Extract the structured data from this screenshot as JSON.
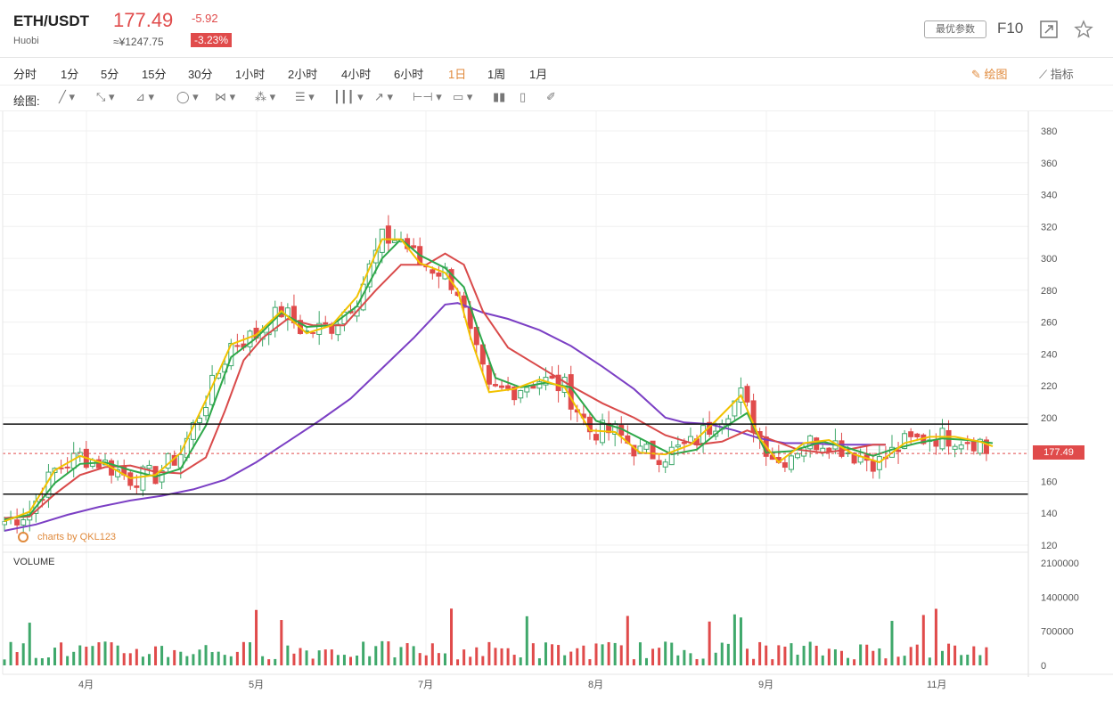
{
  "header": {
    "symbol": "ETH/USDT",
    "exchange": "Huobi",
    "price": "177.49",
    "cny_price": "≈¥1247.75",
    "change": "-5.92",
    "change_pct": "-3.23%",
    "params_label": "最优参数",
    "f10_label": "F10",
    "expand_icon": "expand-icon",
    "star_icon": "star-icon"
  },
  "timeframes": [
    "分时",
    "1分",
    "5分",
    "15分",
    "30分",
    "1小时",
    "2小时",
    "4小时",
    "6小时",
    "1日",
    "1周",
    "1月"
  ],
  "active_timeframe": "1日",
  "toolbar": {
    "draw_label": "绘图",
    "indicator_label": "指标",
    "draw_tools_label": "绘图:"
  },
  "draw_tools": [
    "line-tool-icon",
    "ray-tool-icon",
    "channel-tool-icon",
    "circle-tool-icon",
    "zigzag-tool-icon",
    "pattern-tool-icon",
    "fib-tool-icon",
    "parallel-tool-icon",
    "arrow-tool-icon",
    "measure-tool-icon",
    "comment-tool-icon",
    "bars-tool-icon",
    "delete-tool-icon",
    "eraser-tool-icon"
  ],
  "colors": {
    "up": "#3fa86b",
    "down": "#e04b4b",
    "ma5": "#f2c200",
    "ma10": "#2ea84a",
    "ma20": "#d94a4a",
    "ma60": "#7b3fc4",
    "accent": "#e08a3c"
  },
  "chart_data": {
    "type": "candlestick",
    "ylim": [
      120,
      380
    ],
    "y_ticks": [
      120,
      140,
      160,
      180,
      200,
      220,
      240,
      260,
      280,
      300,
      320,
      340,
      360,
      380
    ],
    "x_ticks": [
      "4月",
      "5月",
      "7月",
      "8月",
      "9月",
      "11月"
    ],
    "last_price": "177.49",
    "watermark": "charts by QKL123",
    "horizontal_lines": [
      196,
      152
    ],
    "volume": {
      "label": "VOLUME",
      "ylim": [
        0,
        2100000
      ],
      "ticks": [
        "2100000",
        "1400000",
        "700000",
        "0"
      ]
    },
    "series": [
      {
        "name": "MA60",
        "points": [
          [
            0,
            129
          ],
          [
            5,
            133
          ],
          [
            10,
            139
          ],
          [
            15,
            144
          ],
          [
            20,
            148
          ],
          [
            25,
            151
          ],
          [
            30,
            155
          ],
          [
            35,
            161
          ],
          [
            40,
            172
          ],
          [
            45,
            185
          ],
          [
            50,
            198
          ],
          [
            55,
            212
          ],
          [
            60,
            231
          ],
          [
            65,
            250
          ],
          [
            70,
            271
          ],
          [
            72,
            272
          ],
          [
            76,
            266
          ],
          [
            80,
            262
          ],
          [
            85,
            255
          ],
          [
            90,
            245
          ],
          [
            95,
            232
          ],
          [
            100,
            218
          ],
          [
            105,
            200
          ],
          [
            108,
            197
          ],
          [
            112,
            196
          ],
          [
            116,
            192
          ],
          [
            120,
            187
          ],
          [
            124,
            184
          ],
          [
            128,
            184
          ],
          [
            132,
            183
          ],
          [
            136,
            183
          ],
          [
            140,
            183
          ]
        ]
      },
      {
        "name": "MA20",
        "points": [
          [
            0,
            137
          ],
          [
            4,
            138
          ],
          [
            8,
            152
          ],
          [
            12,
            164
          ],
          [
            16,
            169
          ],
          [
            20,
            170
          ],
          [
            24,
            166
          ],
          [
            28,
            165
          ],
          [
            32,
            175
          ],
          [
            35,
            204
          ],
          [
            38,
            236
          ],
          [
            41,
            250
          ],
          [
            45,
            262
          ],
          [
            49,
            258
          ],
          [
            54,
            258
          ],
          [
            59,
            280
          ],
          [
            63,
            296
          ],
          [
            67,
            296
          ],
          [
            70,
            303
          ],
          [
            73,
            296
          ],
          [
            76,
            267
          ],
          [
            80,
            244
          ],
          [
            85,
            232
          ],
          [
            90,
            220
          ],
          [
            95,
            209
          ],
          [
            100,
            200
          ],
          [
            105,
            189
          ],
          [
            110,
            183
          ],
          [
            114,
            185
          ],
          [
            118,
            192
          ],
          [
            122,
            186
          ],
          [
            126,
            180
          ],
          [
            130,
            178
          ],
          [
            134,
            180
          ],
          [
            138,
            183
          ],
          [
            140,
            183
          ]
        ]
      },
      {
        "name": "MA10",
        "points": [
          [
            0,
            136
          ],
          [
            4,
            139
          ],
          [
            8,
            159
          ],
          [
            12,
            171
          ],
          [
            16,
            172
          ],
          [
            20,
            167
          ],
          [
            24,
            163
          ],
          [
            28,
            168
          ],
          [
            32,
            195
          ],
          [
            36,
            238
          ],
          [
            40,
            250
          ],
          [
            44,
            266
          ],
          [
            48,
            257
          ],
          [
            52,
            258
          ],
          [
            56,
            270
          ],
          [
            60,
            300
          ],
          [
            63,
            312
          ],
          [
            66,
            302
          ],
          [
            70,
            294
          ],
          [
            73,
            282
          ],
          [
            75,
            258
          ],
          [
            78,
            225
          ],
          [
            82,
            219
          ],
          [
            86,
            222
          ],
          [
            90,
            219
          ],
          [
            94,
            198
          ],
          [
            98,
            193
          ],
          [
            102,
            185
          ],
          [
            106,
            177
          ],
          [
            110,
            180
          ],
          [
            114,
            193
          ],
          [
            118,
            203
          ],
          [
            121,
            178
          ],
          [
            125,
            179
          ],
          [
            130,
            185
          ],
          [
            134,
            181
          ],
          [
            138,
            176
          ],
          [
            141,
            180
          ],
          [
            145,
            184
          ],
          [
            149,
            187
          ],
          [
            153,
            186
          ],
          [
            157,
            184
          ]
        ]
      },
      {
        "name": "MA5",
        "points": [
          [
            0,
            135
          ],
          [
            4,
            141
          ],
          [
            8,
            167
          ],
          [
            12,
            176
          ],
          [
            16,
            171
          ],
          [
            20,
            162
          ],
          [
            24,
            164
          ],
          [
            28,
            178
          ],
          [
            32,
            211
          ],
          [
            36,
            246
          ],
          [
            40,
            252
          ],
          [
            44,
            267
          ],
          [
            48,
            253
          ],
          [
            52,
            258
          ],
          [
            56,
            276
          ],
          [
            60,
            312
          ],
          [
            63,
            312
          ],
          [
            66,
            297
          ],
          [
            70,
            291
          ],
          [
            72,
            280
          ],
          [
            74,
            251
          ],
          [
            77,
            216
          ],
          [
            81,
            218
          ],
          [
            85,
            224
          ],
          [
            89,
            219
          ],
          [
            93,
            192
          ],
          [
            97,
            191
          ],
          [
            101,
            178
          ],
          [
            105,
            177
          ],
          [
            109,
            183
          ],
          [
            113,
            198
          ],
          [
            117,
            214
          ],
          [
            120,
            187
          ],
          [
            123,
            172
          ],
          [
            127,
            184
          ],
          [
            131,
            186
          ],
          [
            135,
            177
          ],
          [
            139,
            172
          ],
          [
            143,
            184
          ],
          [
            147,
            188
          ],
          [
            151,
            188
          ],
          [
            155,
            185
          ],
          [
            157,
            182
          ]
        ]
      }
    ]
  }
}
